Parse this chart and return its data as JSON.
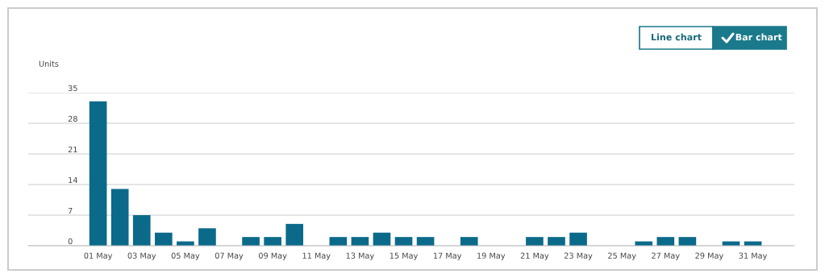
{
  "chart_data": {
    "type": "bar",
    "ylabel": "Units",
    "categories": [
      "01 May",
      null,
      "03 May",
      null,
      "05 May",
      null,
      "07 May",
      null,
      "09 May",
      null,
      "11 May",
      null,
      "13 May",
      null,
      "15 May",
      null,
      "17 May",
      null,
      "19 May",
      null,
      "21 May",
      null,
      "23 May",
      null,
      "25 May",
      null,
      "27 May",
      null,
      "29 May",
      null,
      "31 May"
    ],
    "values": [
      33,
      13,
      7,
      3,
      1,
      4,
      0,
      2,
      2,
      5,
      0,
      2,
      2,
      3,
      2,
      2,
      0,
      2,
      0,
      0,
      2,
      2,
      3,
      0,
      0,
      1,
      2,
      2,
      0,
      1,
      1
    ],
    "color": "#0b6a8a",
    "ylim": [
      0,
      35
    ],
    "yticks": [
      0,
      7,
      14,
      21,
      28,
      35
    ],
    "grid": "y",
    "legend": false,
    "annotations": [
      "Line chart",
      "Bar chart"
    ]
  }
}
